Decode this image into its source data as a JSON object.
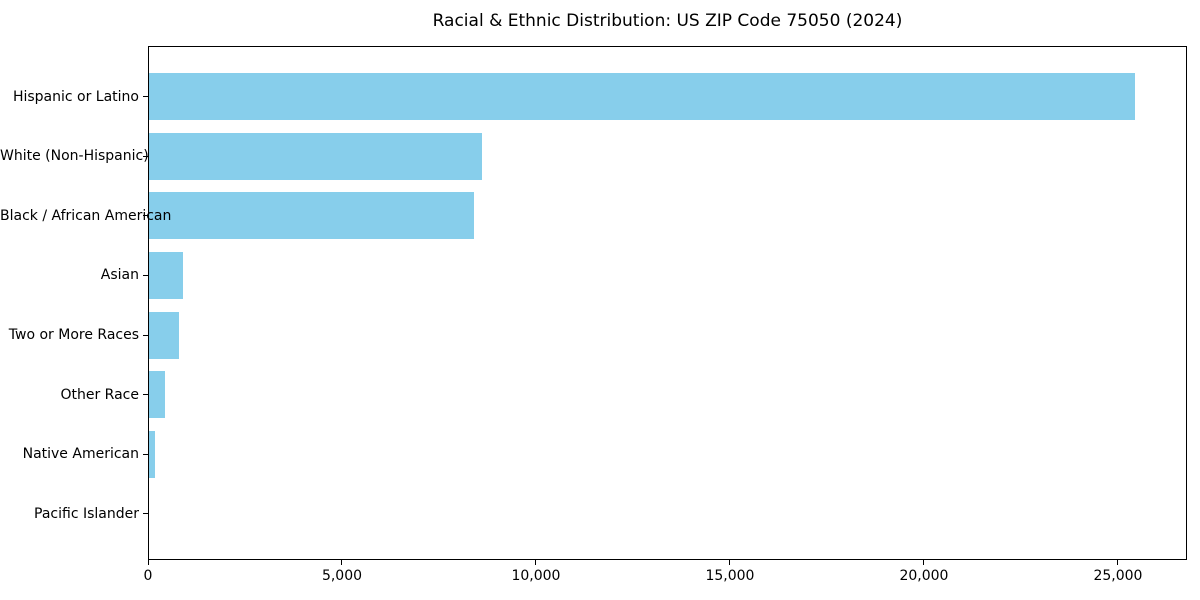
{
  "chart_data": {
    "type": "bar",
    "orientation": "horizontal",
    "title": "Racial & Ethnic Distribution: US ZIP Code 75050 (2024)",
    "categories": [
      "Hispanic or Latino",
      "White (Non-Hispanic)",
      "Black / African American",
      "Asian",
      "Two or More Races",
      "Other Race",
      "Native American",
      "Pacific Islander"
    ],
    "values": [
      25450,
      8600,
      8400,
      900,
      800,
      450,
      190,
      0
    ],
    "xlabel": "",
    "ylabel": "",
    "xlim": [
      0,
      26780
    ],
    "x_ticks": [
      0,
      5000,
      10000,
      15000,
      20000,
      25000
    ],
    "x_tick_labels": [
      "0",
      "5,000",
      "10,000",
      "15,000",
      "20,000",
      "25,000"
    ],
    "bar_color": "#87CEEB",
    "axis_color": "#000000",
    "background_color": "#FFFFFF",
    "grid": false,
    "legend": null
  }
}
